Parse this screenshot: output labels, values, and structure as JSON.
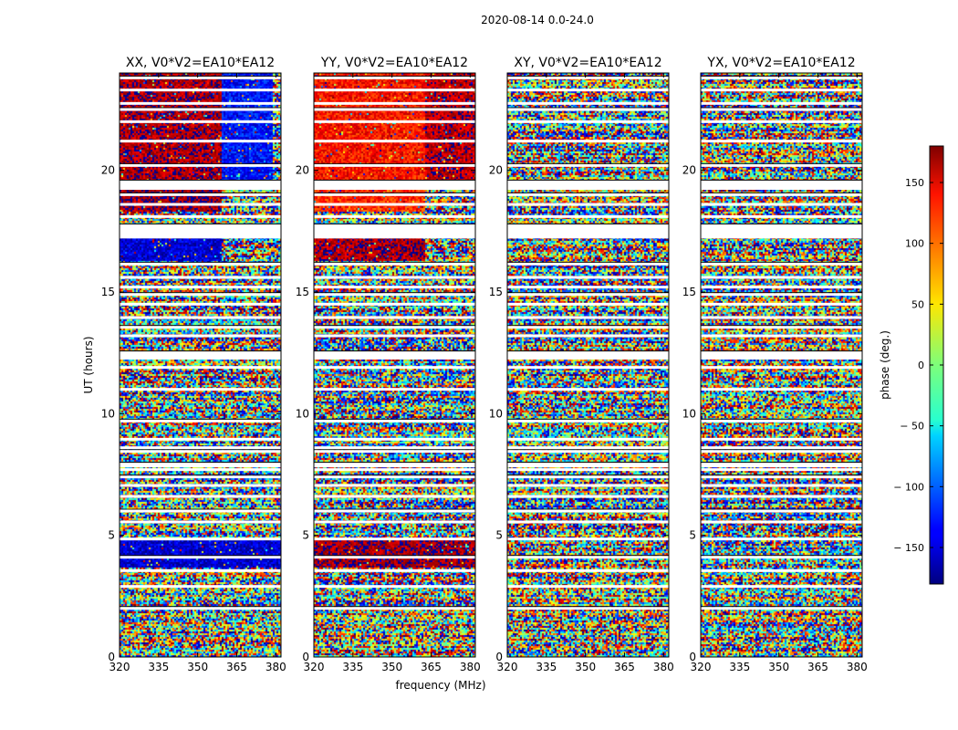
{
  "chart_data": {
    "type": "heatmap",
    "suptitle": "2020-08-14 0.0-24.0",
    "xlabel": "frequency (MHz)",
    "ylabel": "UT (hours)",
    "xlim": [
      320,
      382
    ],
    "xticks": [
      320,
      335,
      350,
      365,
      380
    ],
    "ylim": [
      0,
      24
    ],
    "yticks": [
      0,
      5,
      10,
      15,
      20
    ],
    "colorscale": "jet",
    "colorbar": {
      "label": "phase (deg.)",
      "range": [
        -180,
        180
      ],
      "ticks": [
        150,
        100,
        50,
        0,
        -50,
        -100,
        -150
      ],
      "tick_labels": [
        "150",
        "100",
        "50",
        "0",
        "− 50",
        "− 100",
        "− 150"
      ]
    },
    "flagged_hours": [
      2.0,
      2.9,
      3.55,
      4.1,
      4.85,
      5.55,
      6.0,
      6.6,
      7.05,
      7.4,
      7.7,
      7.85,
      8.45,
      8.6,
      8.95,
      9.7,
      11.0,
      11.9,
      12.3,
      12.45,
      13.2,
      13.55,
      13.95,
      14.5,
      14.9,
      15.2,
      15.6,
      16.15,
      17.35,
      17.5,
      17.65,
      18.1,
      18.6,
      19.0,
      19.35,
      19.45,
      20.2,
      21.2,
      22.0,
      22.5,
      22.75,
      23.3,
      23.8
    ],
    "series": [
      {
        "name": "XX",
        "title": "XX, V0*V2=EA10*EA12",
        "coherent_regions": [
          {
            "t0": 19.6,
            "t1": 24.0,
            "f0": 320,
            "f1": 359,
            "phase": 165
          },
          {
            "t0": 19.6,
            "t1": 24.0,
            "f0": 359,
            "f1": 379,
            "phase": -130
          },
          {
            "t0": 18.3,
            "t1": 19.3,
            "f0": 320,
            "f1": 359,
            "phase": 170
          },
          {
            "t0": 16.3,
            "t1": 17.3,
            "f0": 320,
            "f1": 359,
            "phase": -150
          },
          {
            "t0": 3.7,
            "t1": 4.8,
            "f0": 320,
            "f1": 382,
            "phase": -150
          }
        ]
      },
      {
        "name": "YY",
        "title": "YY, V0*V2=EA10*EA12",
        "coherent_regions": [
          {
            "t0": 19.6,
            "t1": 24.0,
            "f0": 320,
            "f1": 363,
            "phase": 130
          },
          {
            "t0": 19.6,
            "t1": 24.0,
            "f0": 363,
            "f1": 382,
            "phase": 160
          },
          {
            "t0": 18.3,
            "t1": 19.3,
            "f0": 320,
            "f1": 363,
            "phase": 120
          },
          {
            "t0": 16.3,
            "t1": 17.3,
            "f0": 320,
            "f1": 363,
            "phase": 165
          },
          {
            "t0": 3.7,
            "t1": 4.8,
            "f0": 320,
            "f1": 382,
            "phase": 170
          }
        ]
      },
      {
        "name": "XY",
        "title": "XY, V0*V2=EA10*EA12",
        "coherent_regions": []
      },
      {
        "name": "YX",
        "title": "YX, V0*V2=EA10*EA12",
        "coherent_regions": []
      }
    ]
  }
}
